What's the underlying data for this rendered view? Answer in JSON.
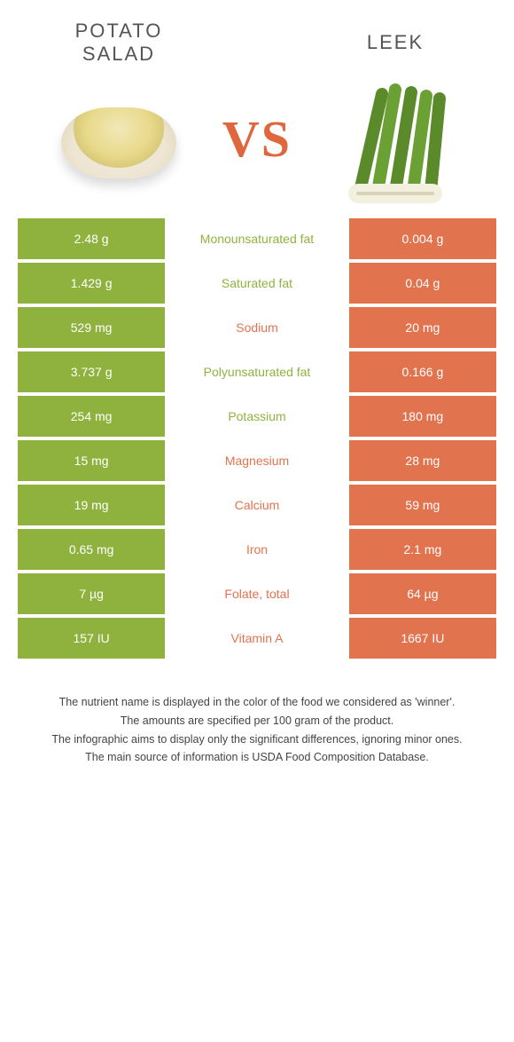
{
  "colors": {
    "left": "#8fb23f",
    "right": "#e2734f",
    "vs": "#e0663e"
  },
  "header": {
    "left_title": "Potato\nSalad",
    "right_title": "Leek",
    "vs": "VS"
  },
  "rows": [
    {
      "left": "2.48 g",
      "label": "Monounsaturated fat",
      "right": "0.004 g",
      "winner": "left"
    },
    {
      "left": "1.429 g",
      "label": "Saturated fat",
      "right": "0.04 g",
      "winner": "left"
    },
    {
      "left": "529 mg",
      "label": "Sodium",
      "right": "20 mg",
      "winner": "right"
    },
    {
      "left": "3.737 g",
      "label": "Polyunsaturated fat",
      "right": "0.166 g",
      "winner": "left"
    },
    {
      "left": "254 mg",
      "label": "Potassium",
      "right": "180 mg",
      "winner": "left"
    },
    {
      "left": "15 mg",
      "label": "Magnesium",
      "right": "28 mg",
      "winner": "right"
    },
    {
      "left": "19 mg",
      "label": "Calcium",
      "right": "59 mg",
      "winner": "right"
    },
    {
      "left": "0.65 mg",
      "label": "Iron",
      "right": "2.1 mg",
      "winner": "right"
    },
    {
      "left": "7 µg",
      "label": "Folate, total",
      "right": "64 µg",
      "winner": "right"
    },
    {
      "left": "157 IU",
      "label": "Vitamin A",
      "right": "1667 IU",
      "winner": "right"
    }
  ],
  "footer": [
    "The nutrient name is displayed in the color of the food we considered as 'winner'.",
    "The amounts are specified per 100 gram of the product.",
    "The infographic aims to display only the significant differences, ignoring minor ones.",
    "The main source of information is USDA Food Composition Database."
  ]
}
